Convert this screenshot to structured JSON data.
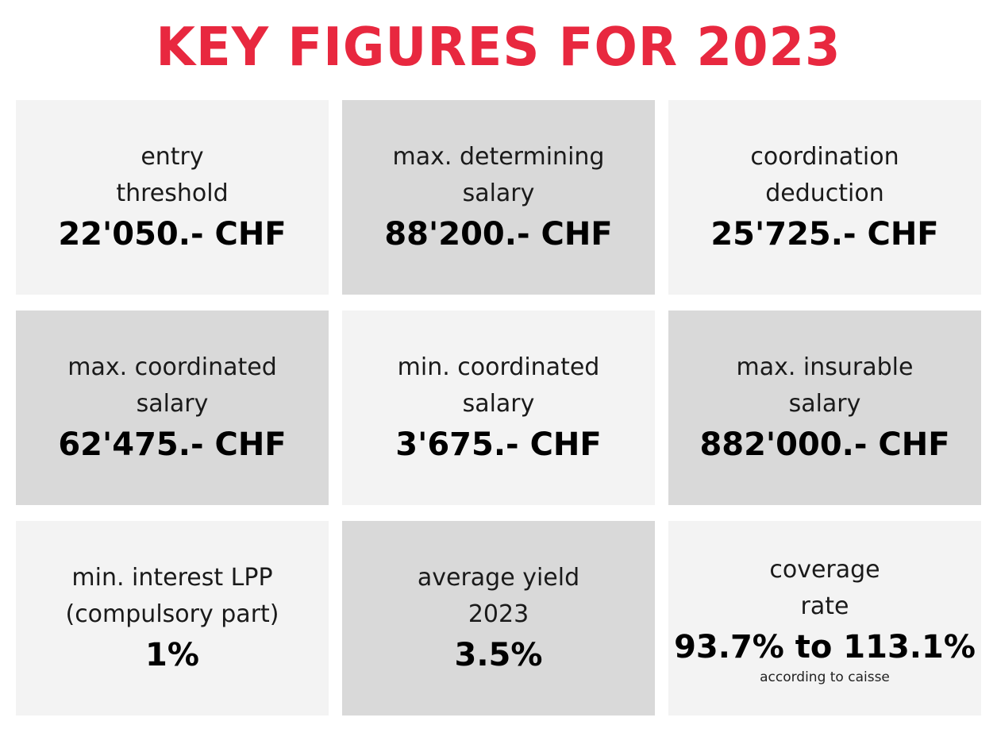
{
  "title": "KEY FIGURES FOR 2023",
  "tiles": [
    {
      "label_line1": "entry",
      "label_line2": "threshold",
      "value": "22'050.- CHF"
    },
    {
      "label_line1": "max. determining",
      "label_line2": "salary",
      "value": "88'200.- CHF"
    },
    {
      "label_line1": "coordination",
      "label_line2": "deduction",
      "value": "25'725.- CHF"
    },
    {
      "label_line1": "max. coordinated",
      "label_line2": "salary",
      "value": "62'475.- CHF"
    },
    {
      "label_line1": "min. coordinated",
      "label_line2": "salary",
      "value": "3'675.- CHF"
    },
    {
      "label_line1": "max. insurable",
      "label_line2": "salary",
      "value": "882'000.- CHF"
    },
    {
      "label_line1": "min. interest LPP",
      "label_line2": "(compulsory part)",
      "value": "1%"
    },
    {
      "label_line1": "average yield",
      "label_line2": "2023",
      "value": "3.5%"
    },
    {
      "label_line1": "coverage",
      "label_line2": "rate",
      "value": "93.7% to 113.1%",
      "note": "according to caisse"
    }
  ],
  "colors": {
    "title": "#e8283f",
    "tile_light": "#f3f3f3",
    "tile_dark": "#d9d9d9"
  }
}
